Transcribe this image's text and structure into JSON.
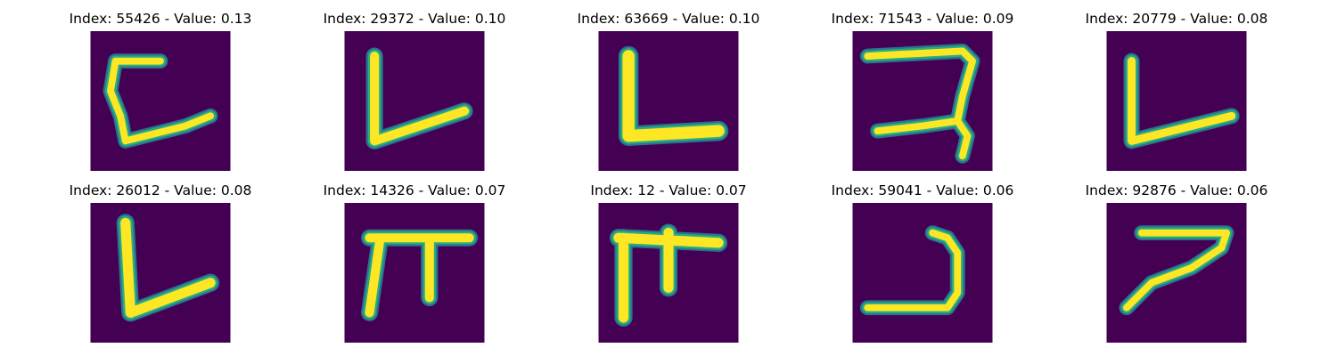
{
  "colors": {
    "background": "#440154",
    "stroke_core": "#fde725",
    "stroke_edge": "#27ad81",
    "stroke_halo": "#2c728e"
  },
  "panels": [
    {
      "title": "Index: 55426 - Value: 0.13",
      "glyph": "bracket-left-with-tail"
    },
    {
      "title": "Index: 29372 - Value: 0.10",
      "glyph": "tilted-l"
    },
    {
      "title": "Index: 63669 - Value: 0.10",
      "glyph": "block-l"
    },
    {
      "title": "Index: 71543 - Value: 0.09",
      "glyph": "hook-character"
    },
    {
      "title": "Index: 20779 - Value: 0.08",
      "glyph": "thin-l"
    },
    {
      "title": "Index: 26012 - Value: 0.08",
      "glyph": "v-shaped-l"
    },
    {
      "title": "Index: 14326 - Value: 0.07",
      "glyph": "pi-character"
    },
    {
      "title": "Index: 12 - Value: 0.07",
      "glyph": "pi-character-bold"
    },
    {
      "title": "Index: 59041 - Value: 0.06",
      "glyph": "reversed-c"
    },
    {
      "title": "Index: 92876 - Value: 0.06",
      "glyph": "seven-shape"
    }
  ]
}
